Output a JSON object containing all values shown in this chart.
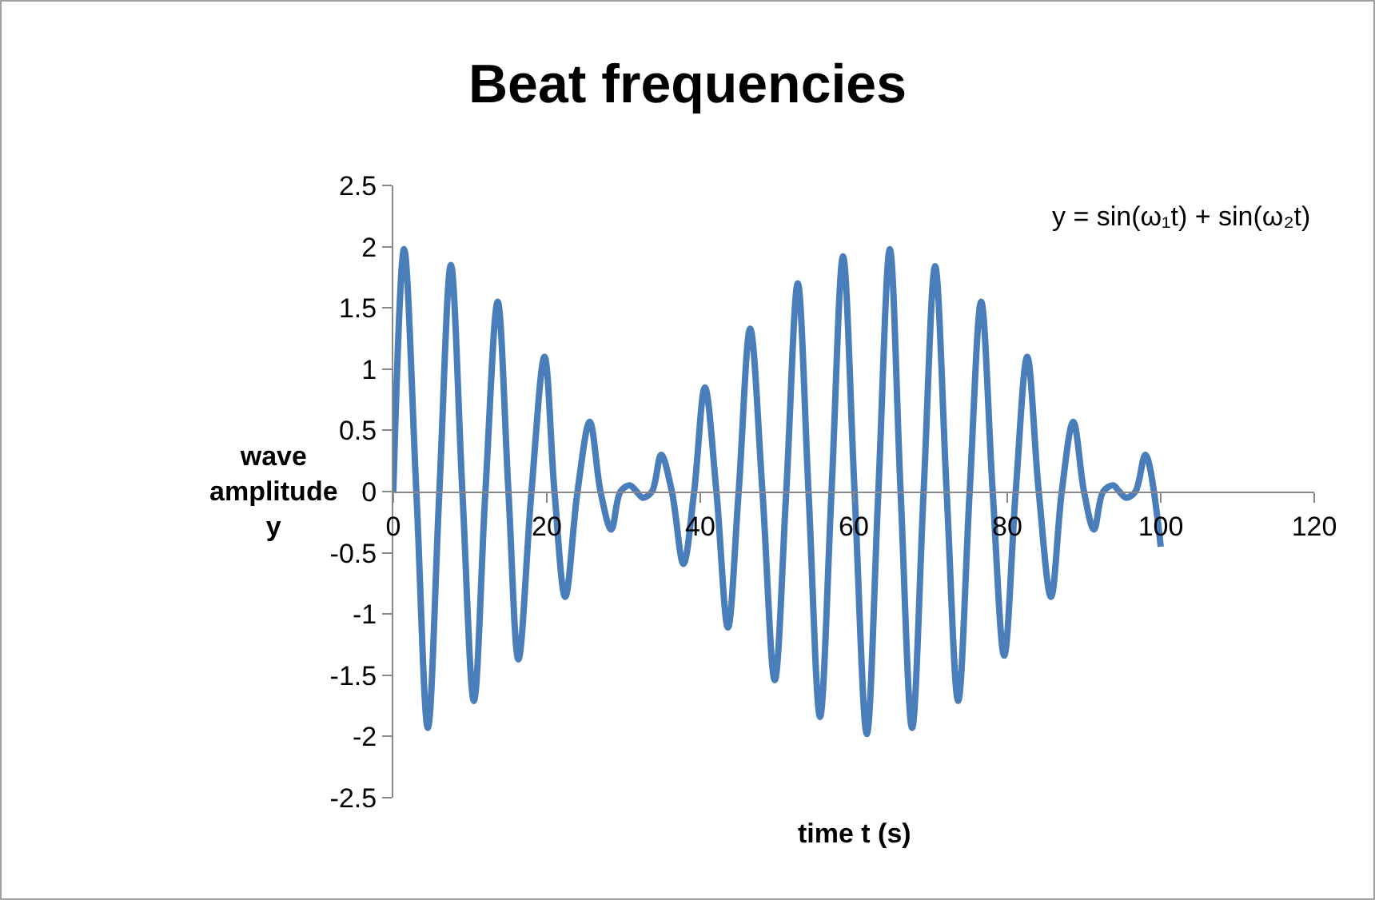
{
  "chart_data": {
    "type": "line",
    "title": "Beat frequencies",
    "xlabel": "time t (s)",
    "ylabel": "wave amplitude y",
    "annotations": [
      "y = sin(ω₁t) + sin(ω₂t)"
    ],
    "xlim": [
      0,
      120
    ],
    "xticks": [
      0,
      20,
      40,
      60,
      80,
      100,
      120
    ],
    "ylim": [
      -2.5,
      2.5
    ],
    "yticks": [
      -2.5,
      -2,
      -1.5,
      -1,
      -0.5,
      0,
      0.5,
      1,
      1.5,
      2,
      2.5
    ],
    "line_style": "solid",
    "series": [
      {
        "color": "#4a7ebb",
        "x": [
          0,
          1.4,
          3.0,
          4.5,
          6.0,
          7.5,
          9.0,
          10.5,
          12.0,
          13.6,
          15.0,
          16.3,
          18.0,
          19.7,
          21.0,
          22.4,
          24.0,
          25.6,
          27.0,
          28.4,
          29.6,
          30.8,
          31.7,
          32.5,
          33.7,
          34.9,
          36.3,
          37.8,
          39.2,
          40.6,
          42.1,
          43.6,
          45.0,
          46.5,
          48.1,
          49.7,
          51.2,
          52.7,
          54.1,
          55.6,
          57.1,
          58.6,
          60.1,
          61.7,
          63.2,
          64.7,
          66.1,
          67.6,
          69.1,
          70.6,
          72.1,
          73.6,
          75.1,
          76.6,
          78.1,
          79.6,
          81.1,
          82.6,
          84.1,
          85.7,
          87.1,
          88.6,
          90.0,
          91.3,
          92.5,
          93.8,
          94.6,
          95.5,
          96.7,
          98,
          100
        ],
        "values": [
          0,
          1.98,
          0,
          -1.93,
          0,
          1.85,
          0,
          -1.71,
          0,
          1.55,
          0,
          -1.37,
          0,
          1.1,
          0,
          -0.86,
          0,
          0.57,
          0,
          -0.31,
          0,
          0.05,
          0,
          -0.05,
          0,
          0.3,
          0,
          -0.59,
          0,
          0.85,
          0,
          -1.11,
          0,
          1.33,
          0,
          -1.54,
          0,
          1.7,
          0,
          -1.84,
          0,
          1.92,
          0,
          -1.98,
          0,
          1.98,
          0,
          -1.93,
          0,
          1.84,
          0,
          -1.71,
          0,
          1.55,
          0,
          -1.34,
          0,
          1.1,
          0,
          -0.86,
          0,
          0.57,
          0,
          -0.31,
          0,
          0.05,
          0,
          -0.05,
          0,
          0.3,
          -0.45
        ]
      }
    ]
  }
}
